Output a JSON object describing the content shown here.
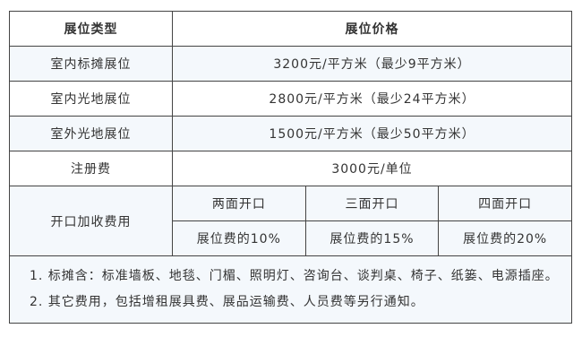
{
  "header": {
    "type": "展位类型",
    "price": "展位价格"
  },
  "rows": [
    {
      "type": "室内标摊展位",
      "price": "3200元/平方米（最少9平方米）"
    },
    {
      "type": "室内光地展位",
      "price": "2800元/平方米（最少24平方米）"
    },
    {
      "type": "室外光地展位",
      "price": "1500元/平方米（最少50平方米）"
    },
    {
      "type": "注册费",
      "price": "3000元/单位"
    }
  ],
  "opening": {
    "label": "开口加收费用",
    "headers": [
      "两面开口",
      "三面开口",
      "四面开口"
    ],
    "values": [
      "展位费的10%",
      "展位费的15%",
      "展位费的20%"
    ]
  },
  "notes": [
    "1. 标摊含：标准墙板、地毯、门楣、照明灯、咨询台、谈判桌、椅子、纸篓、电源插座。",
    "2. 其它费用，包括增租展具费、展品运输费、人员费等另行通知。"
  ]
}
